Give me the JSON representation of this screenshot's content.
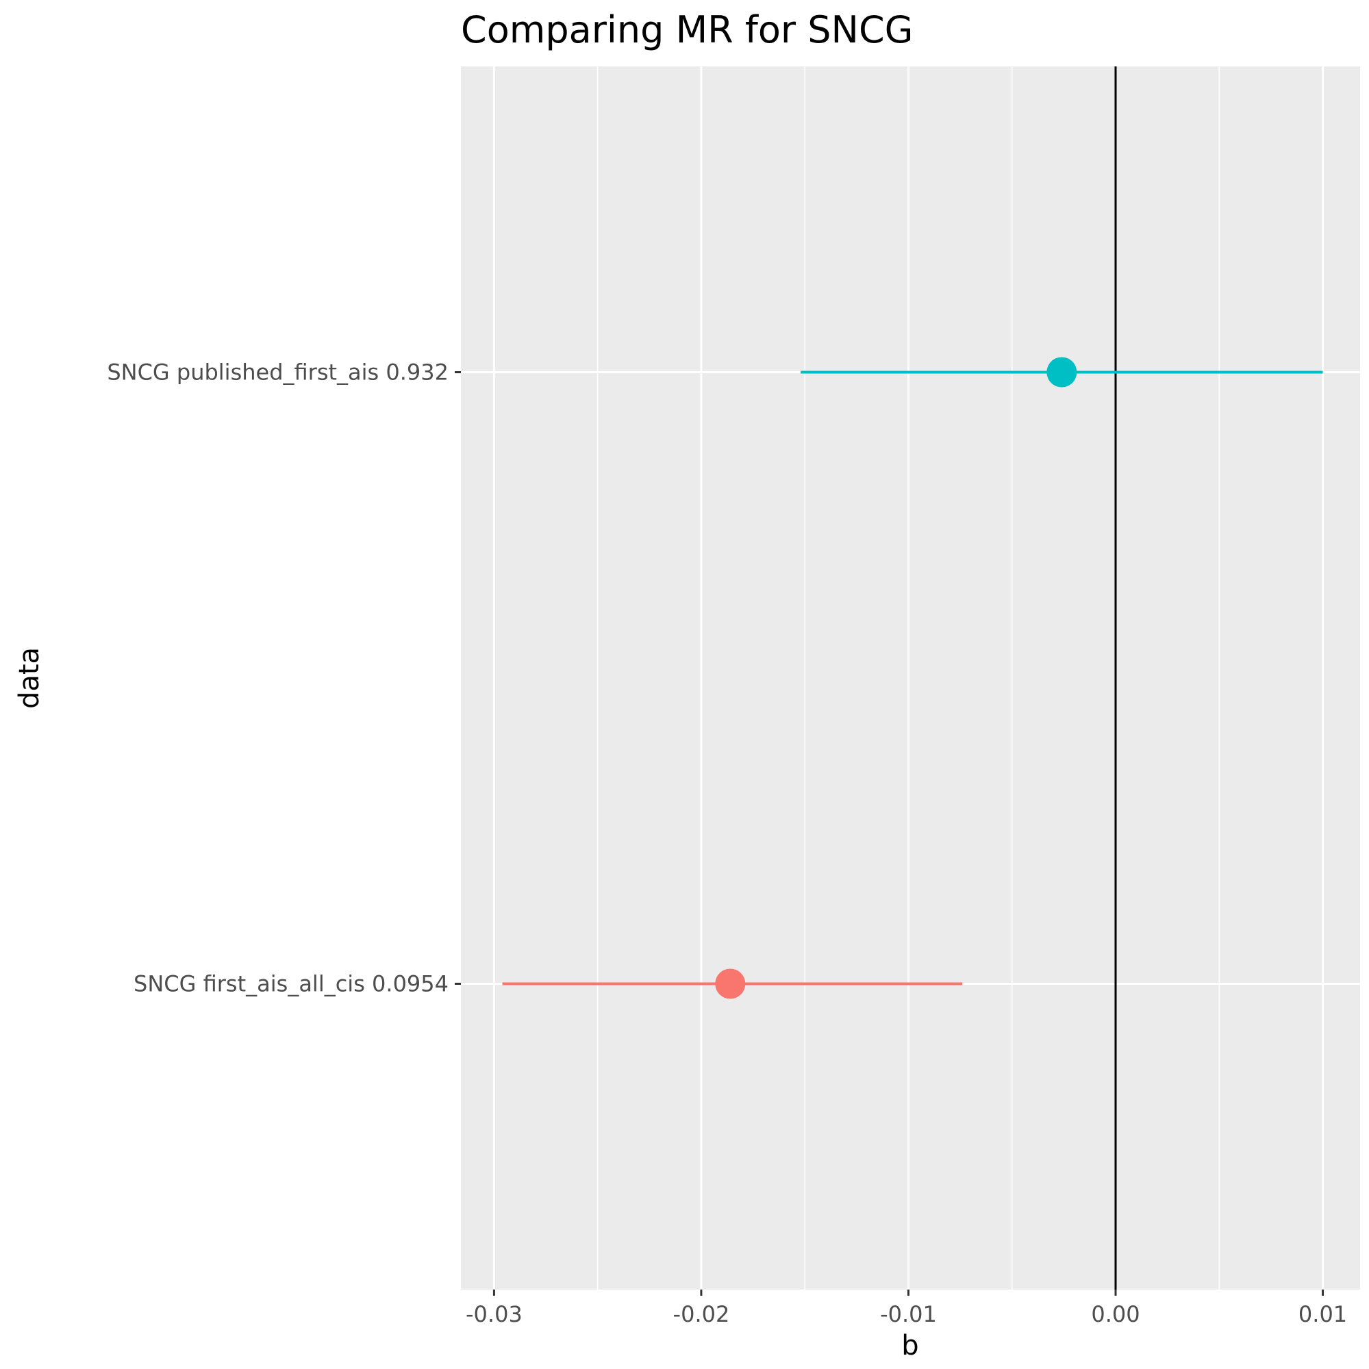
{
  "chart_data": {
    "type": "scatter",
    "subtype": "forest-plot",
    "title": "Comparing MR for SNCG",
    "xlabel": "b",
    "ylabel": "data",
    "xlim": [
      -0.0316,
      0.0118
    ],
    "x_ticks": [
      -0.03,
      -0.02,
      -0.01,
      0.0,
      0.01
    ],
    "x_tick_labels": [
      "-0.03",
      "-0.02",
      "-0.01",
      "0.00",
      "0.01"
    ],
    "reference_line_x": 0,
    "grid": true,
    "legend": "none",
    "categories": [
      "SNCG first_ais_all_cis 0.0954",
      "SNCG published_first_ais 0.932"
    ],
    "points": [
      {
        "label": "SNCG first_ais_all_cis 0.0954",
        "b": -0.0186,
        "lo": -0.0296,
        "hi": -0.0074,
        "color": "#F8766D"
      },
      {
        "label": "SNCG published_first_ais 0.932",
        "b": -0.0026,
        "lo": -0.0152,
        "hi": 0.01,
        "color": "#00BFC4"
      }
    ],
    "panel_background": "#EBEBEB",
    "gridline_color": "#FFFFFF"
  }
}
